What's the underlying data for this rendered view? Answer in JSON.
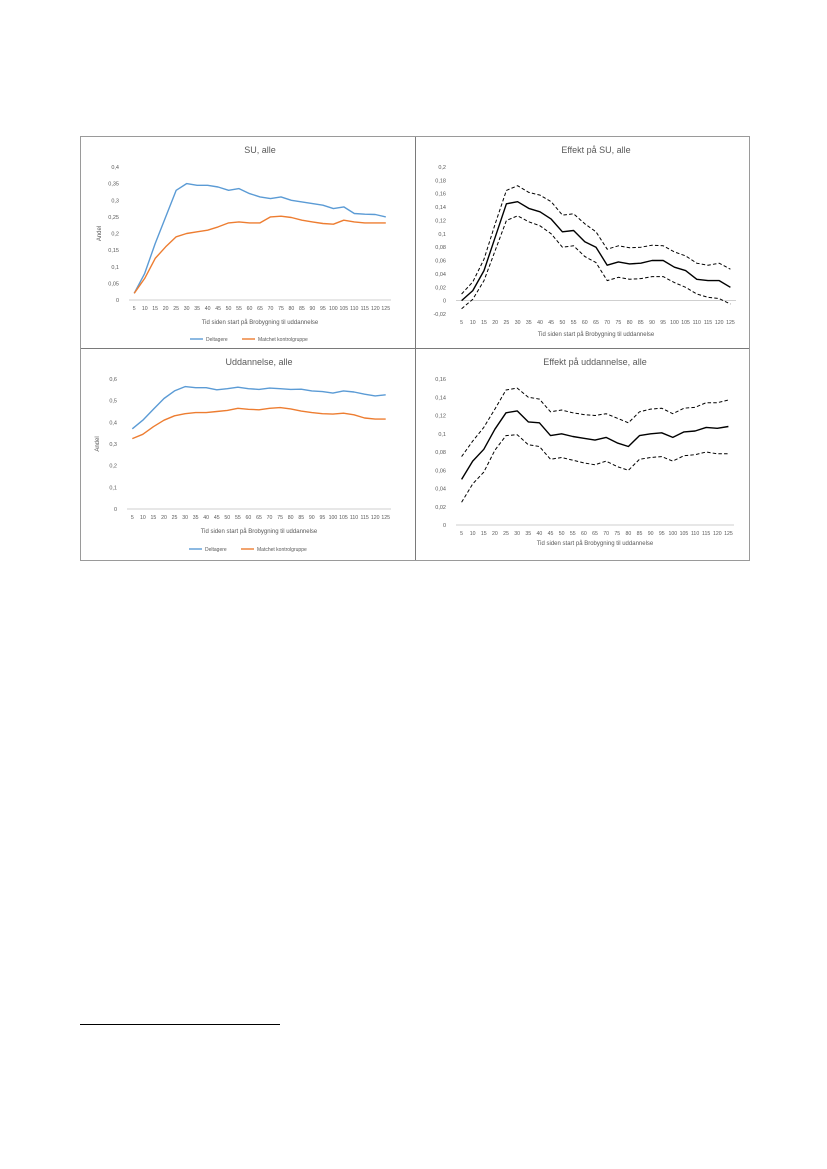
{
  "figure_title": "",
  "chart_data": [
    {
      "type": "line",
      "title": "SU, alle",
      "xlabel": "Tid siden start på Brobygning til uddannelse",
      "ylabel": "Andel",
      "x": [
        5,
        10,
        15,
        20,
        25,
        30,
        35,
        40,
        45,
        50,
        55,
        60,
        65,
        70,
        75,
        80,
        85,
        90,
        95,
        100,
        105,
        110,
        115,
        120,
        125
      ],
      "ylim": [
        0,
        0.4
      ],
      "yticks": [
        0,
        0.05,
        0.1,
        0.15,
        0.2,
        0.25,
        0.3,
        0.35,
        0.4
      ],
      "ytick_labels": [
        "0",
        "0,05",
        "0,1",
        "0,15",
        "0,2",
        "0,25",
        "0,3",
        "0,35",
        "0,4"
      ],
      "grid": false,
      "legend": "bottom",
      "series": [
        {
          "name": "Deltagere",
          "color": "#5b9bd5",
          "style": "solid",
          "values": [
            0.02,
            0.08,
            0.17,
            0.25,
            0.33,
            0.35,
            0.345,
            0.345,
            0.34,
            0.33,
            0.335,
            0.32,
            0.31,
            0.305,
            0.31,
            0.3,
            0.295,
            0.29,
            0.285,
            0.275,
            0.28,
            0.26,
            0.258,
            0.257,
            0.25
          ]
        },
        {
          "name": "Matchet kontrolgruppe",
          "color": "#ed7d31",
          "style": "solid",
          "values": [
            0.02,
            0.065,
            0.125,
            0.16,
            0.19,
            0.2,
            0.205,
            0.21,
            0.22,
            0.232,
            0.235,
            0.232,
            0.232,
            0.25,
            0.252,
            0.248,
            0.24,
            0.235,
            0.23,
            0.228,
            0.24,
            0.235,
            0.232,
            0.232,
            0.232
          ]
        }
      ]
    },
    {
      "type": "line",
      "title": "Effekt på SU, alle",
      "xlabel": "Tid siden start på Brobygning til uddannelse",
      "ylabel": "",
      "x": [
        5,
        10,
        15,
        20,
        25,
        30,
        35,
        40,
        45,
        50,
        55,
        60,
        65,
        70,
        75,
        80,
        85,
        90,
        95,
        100,
        105,
        110,
        115,
        120,
        125
      ],
      "ylim": [
        -0.02,
        0.2
      ],
      "yticks": [
        -0.02,
        0,
        0.02,
        0.04,
        0.06,
        0.08,
        0.1,
        0.12,
        0.14,
        0.16,
        0.18,
        0.2
      ],
      "ytick_labels": [
        "-0,02",
        "0",
        "0,02",
        "0,04",
        "0,06",
        "0,08",
        "0,1",
        "0,12",
        "0,14",
        "0,16",
        "0,18",
        "0,2"
      ],
      "grid": false,
      "legend": "none",
      "series": [
        {
          "color": "#000000",
          "style": "solid",
          "values": [
            0.0,
            0.015,
            0.045,
            0.095,
            0.145,
            0.148,
            0.138,
            0.133,
            0.122,
            0.103,
            0.105,
            0.088,
            0.08,
            0.053,
            0.058,
            0.055,
            0.056,
            0.06,
            0.06,
            0.05,
            0.045,
            0.032,
            0.03,
            0.03,
            0.02
          ]
        },
        {
          "color": "#000000",
          "style": "dashed",
          "values": [
            0.01,
            0.028,
            0.062,
            0.115,
            0.165,
            0.172,
            0.162,
            0.158,
            0.148,
            0.128,
            0.13,
            0.115,
            0.103,
            0.077,
            0.082,
            0.079,
            0.08,
            0.083,
            0.082,
            0.073,
            0.067,
            0.056,
            0.053,
            0.056,
            0.047
          ]
        },
        {
          "color": "#000000",
          "style": "dashed",
          "values": [
            -0.012,
            0.002,
            0.03,
            0.075,
            0.12,
            0.127,
            0.118,
            0.112,
            0.1,
            0.08,
            0.082,
            0.066,
            0.057,
            0.03,
            0.035,
            0.032,
            0.033,
            0.036,
            0.036,
            0.027,
            0.02,
            0.01,
            0.005,
            0.003,
            -0.005
          ]
        }
      ]
    },
    {
      "type": "line",
      "title": "Uddannelse, alle",
      "xlabel": "Tid siden start på Brobygning til uddannelse",
      "ylabel": "Andel",
      "x": [
        5,
        10,
        15,
        20,
        25,
        30,
        35,
        40,
        45,
        50,
        55,
        60,
        65,
        70,
        75,
        80,
        85,
        90,
        95,
        100,
        105,
        110,
        115,
        120,
        125
      ],
      "ylim": [
        0,
        0.6
      ],
      "yticks": [
        0,
        0.1,
        0.2,
        0.3,
        0.4,
        0.5,
        0.6
      ],
      "ytick_labels": [
        "0",
        "0,1",
        "0,2",
        "0,3",
        "0,4",
        "0,5",
        "0,6"
      ],
      "grid": false,
      "legend": "bottom",
      "series": [
        {
          "name": "Deltagere",
          "color": "#5b9bd5",
          "style": "solid",
          "values": [
            0.37,
            0.41,
            0.46,
            0.51,
            0.545,
            0.565,
            0.56,
            0.56,
            0.55,
            0.555,
            0.562,
            0.555,
            0.552,
            0.558,
            0.555,
            0.552,
            0.553,
            0.545,
            0.542,
            0.535,
            0.545,
            0.54,
            0.53,
            0.522,
            0.527
          ]
        },
        {
          "name": "Matchet kontrolgruppe",
          "color": "#ed7d31",
          "style": "solid",
          "values": [
            0.325,
            0.345,
            0.38,
            0.41,
            0.43,
            0.44,
            0.445,
            0.445,
            0.45,
            0.455,
            0.465,
            0.46,
            0.458,
            0.465,
            0.468,
            0.462,
            0.452,
            0.445,
            0.44,
            0.438,
            0.442,
            0.435,
            0.42,
            0.415,
            0.415
          ]
        }
      ]
    },
    {
      "type": "line",
      "title": "Effekt på uddannelse, alle",
      "xlabel": "Tid siden start på Brobygning til uddannelse",
      "ylabel": "",
      "x": [
        5,
        10,
        15,
        20,
        25,
        30,
        35,
        40,
        45,
        50,
        55,
        60,
        65,
        70,
        75,
        80,
        85,
        90,
        95,
        100,
        105,
        110,
        115,
        120,
        125
      ],
      "ylim": [
        0,
        0.16
      ],
      "yticks": [
        0,
        0.02,
        0.04,
        0.06,
        0.08,
        0.1,
        0.12,
        0.14,
        0.16
      ],
      "ytick_labels": [
        "0",
        "0,02",
        "0,04",
        "0,06",
        "0,08",
        "0,1",
        "0,12",
        "0,14",
        "0,16"
      ],
      "grid": false,
      "legend": "none",
      "series": [
        {
          "color": "#000000",
          "style": "solid",
          "values": [
            0.05,
            0.07,
            0.083,
            0.105,
            0.123,
            0.125,
            0.113,
            0.112,
            0.098,
            0.1,
            0.097,
            0.095,
            0.093,
            0.096,
            0.09,
            0.086,
            0.098,
            0.1,
            0.101,
            0.096,
            0.102,
            0.103,
            0.107,
            0.106,
            0.108
          ]
        },
        {
          "color": "#000000",
          "style": "dashed",
          "values": [
            0.075,
            0.092,
            0.107,
            0.127,
            0.148,
            0.15,
            0.14,
            0.138,
            0.124,
            0.126,
            0.123,
            0.121,
            0.12,
            0.122,
            0.117,
            0.112,
            0.124,
            0.127,
            0.128,
            0.122,
            0.128,
            0.129,
            0.134,
            0.134,
            0.137
          ]
        },
        {
          "color": "#000000",
          "style": "dashed",
          "values": [
            0.025,
            0.045,
            0.058,
            0.082,
            0.098,
            0.099,
            0.088,
            0.086,
            0.072,
            0.074,
            0.071,
            0.068,
            0.066,
            0.07,
            0.064,
            0.06,
            0.072,
            0.074,
            0.075,
            0.07,
            0.076,
            0.077,
            0.08,
            0.078,
            0.078
          ]
        }
      ]
    }
  ]
}
